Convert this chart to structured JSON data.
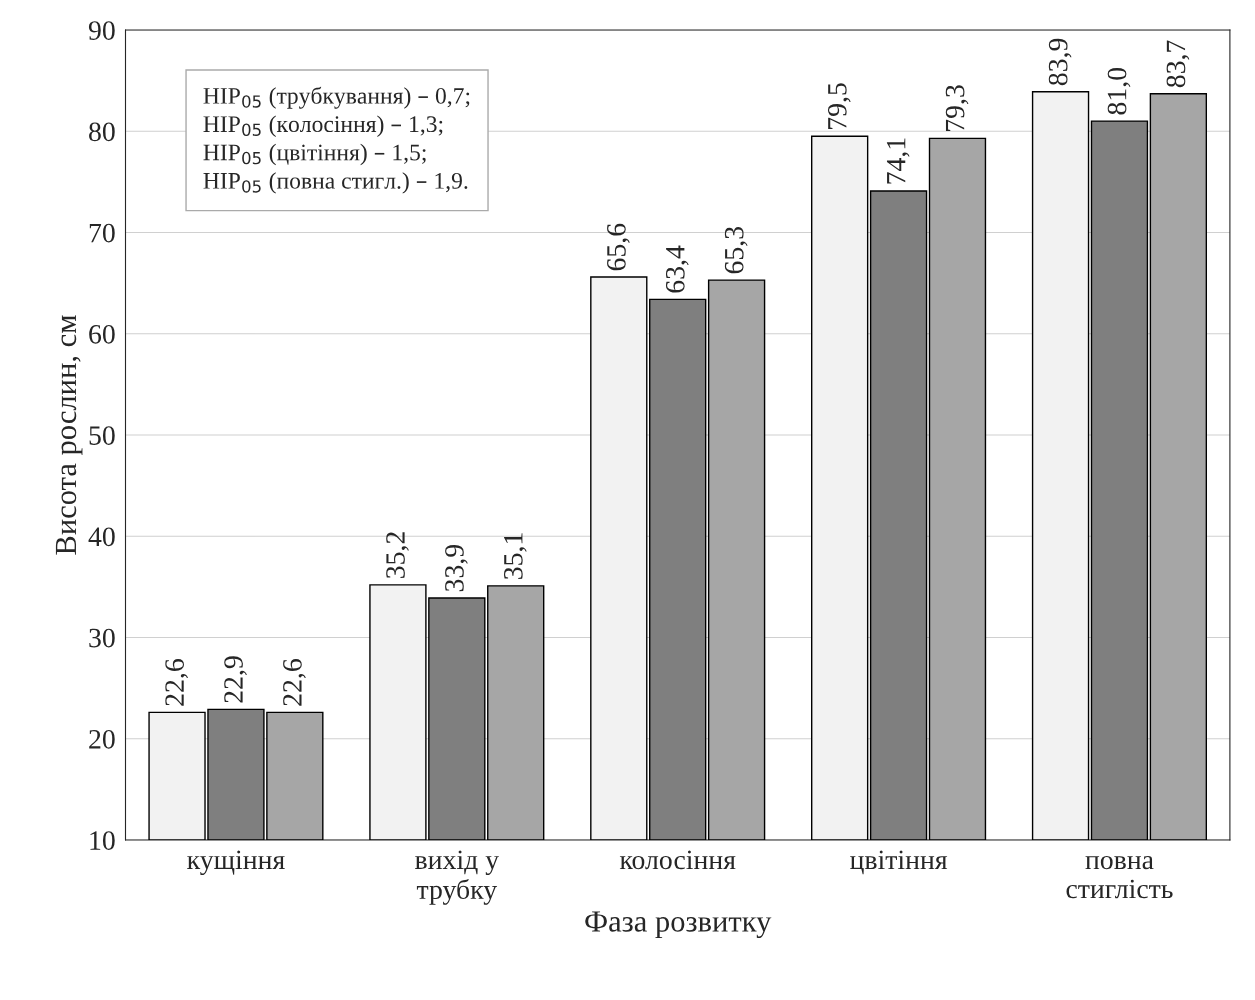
{
  "chart_data": {
    "type": "bar",
    "xlabel": "Фаза розвитку",
    "ylabel": "Висота рослин, см",
    "categories": [
      "кущіння",
      "вихід у\nтрубку",
      "колосіння",
      "цвітіння",
      "повна\nстиглість"
    ],
    "series": [
      {
        "color": "#f2f2f2",
        "values": [
          22.6,
          35.2,
          65.6,
          79.5,
          83.9
        ],
        "value_labels": [
          "22,6",
          "35,2",
          "65,6",
          "79,5",
          "83,9"
        ]
      },
      {
        "color": "#7f7f7f",
        "values": [
          22.9,
          33.9,
          63.4,
          74.1,
          81.0
        ],
        "value_labels": [
          "22,9",
          "33,9",
          "63,4",
          "74,1",
          "81,0"
        ]
      },
      {
        "color": "#a6a6a6",
        "values": [
          22.6,
          35.1,
          65.3,
          79.3,
          83.7
        ],
        "value_labels": [
          "22,6",
          "35,1",
          "65,3",
          "79,3",
          "83,7"
        ]
      }
    ],
    "ylim": [
      10,
      90
    ],
    "yticks": [
      10,
      20,
      30,
      40,
      50,
      60,
      70,
      80,
      90
    ],
    "grid": "y",
    "annotations": [
      "НІР$_{05}$ (трубкування) – 0,7;",
      "НІР$_{05}$ (колосіння) – 1,3;",
      "НІР$_{05}$ (цвітіння) – 1,5;",
      "НІР$_{05}$ (повна стигл.) – 1,9."
    ]
  }
}
